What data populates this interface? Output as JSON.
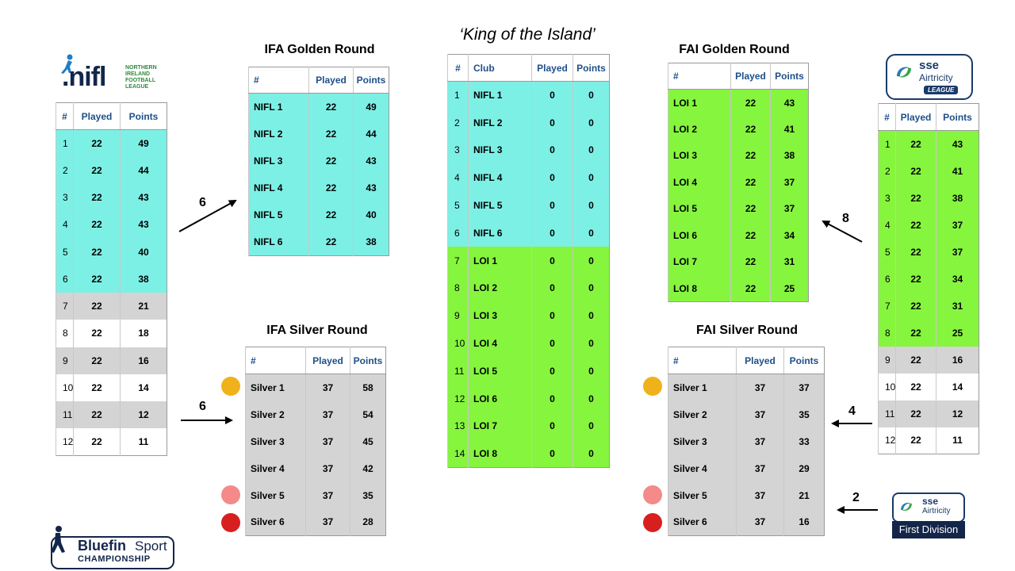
{
  "king": {
    "title": "‘King of the Island’",
    "headers": [
      "#",
      "Club",
      "Played",
      "Points"
    ],
    "rows": [
      {
        "rank": "1",
        "club": "NIFL 1",
        "played": "0",
        "points": "0",
        "color": "cyan"
      },
      {
        "rank": "2",
        "club": "NIFL 2",
        "played": "0",
        "points": "0",
        "color": "cyan"
      },
      {
        "rank": "3",
        "club": "NIFL 3",
        "played": "0",
        "points": "0",
        "color": "cyan"
      },
      {
        "rank": "4",
        "club": "NIFL 4",
        "played": "0",
        "points": "0",
        "color": "cyan"
      },
      {
        "rank": "5",
        "club": "NIFL 5",
        "played": "0",
        "points": "0",
        "color": "cyan"
      },
      {
        "rank": "6",
        "club": "NIFL 6",
        "played": "0",
        "points": "0",
        "color": "cyan"
      },
      {
        "rank": "7",
        "club": "LOI 1",
        "played": "0",
        "points": "0",
        "color": "green"
      },
      {
        "rank": "8",
        "club": "LOI 2",
        "played": "0",
        "points": "0",
        "color": "green"
      },
      {
        "rank": "9",
        "club": "LOI 3",
        "played": "0",
        "points": "0",
        "color": "green"
      },
      {
        "rank": "10",
        "club": "LOI 4",
        "played": "0",
        "points": "0",
        "color": "green"
      },
      {
        "rank": "11",
        "club": "LOI 5",
        "played": "0",
        "points": "0",
        "color": "green"
      },
      {
        "rank": "12",
        "club": "LOI 6",
        "played": "0",
        "points": "0",
        "color": "green"
      },
      {
        "rank": "13",
        "club": "LOI 7",
        "played": "0",
        "points": "0",
        "color": "green"
      },
      {
        "rank": "14",
        "club": "LOI 8",
        "played": "0",
        "points": "0",
        "color": "green"
      }
    ]
  },
  "nifl": {
    "logo_text": ".nifl",
    "logo_sub": [
      "NORTHERN",
      "IRELAND",
      "FOOTBALL",
      "LEAGUE"
    ],
    "headers": [
      "#",
      "Played",
      "Points"
    ],
    "rows": [
      {
        "rank": "1",
        "played": "22",
        "points": "49",
        "color": "cyan"
      },
      {
        "rank": "2",
        "played": "22",
        "points": "44",
        "color": "cyan"
      },
      {
        "rank": "3",
        "played": "22",
        "points": "43",
        "color": "cyan"
      },
      {
        "rank": "4",
        "played": "22",
        "points": "43",
        "color": "cyan"
      },
      {
        "rank": "5",
        "played": "22",
        "points": "40",
        "color": "cyan"
      },
      {
        "rank": "6",
        "played": "22",
        "points": "38",
        "color": "cyan"
      },
      {
        "rank": "7",
        "played": "22",
        "points": "21",
        "color": "grey"
      },
      {
        "rank": "8",
        "played": "22",
        "points": "18",
        "color": "white"
      },
      {
        "rank": "9",
        "played": "22",
        "points": "16",
        "color": "grey"
      },
      {
        "rank": "10",
        "played": "22",
        "points": "14",
        "color": "white"
      },
      {
        "rank": "11",
        "played": "22",
        "points": "12",
        "color": "grey"
      },
      {
        "rank": "12",
        "played": "22",
        "points": "11",
        "color": "white"
      }
    ]
  },
  "loi": {
    "logo_brand": "sse",
    "logo_name": "Airtricity",
    "logo_league": "LEAGUE",
    "headers": [
      "#",
      "Played",
      "Points"
    ],
    "rows": [
      {
        "rank": "1",
        "played": "22",
        "points": "43",
        "color": "green"
      },
      {
        "rank": "2",
        "played": "22",
        "points": "41",
        "color": "green"
      },
      {
        "rank": "3",
        "played": "22",
        "points": "38",
        "color": "green"
      },
      {
        "rank": "4",
        "played": "22",
        "points": "37",
        "color": "green"
      },
      {
        "rank": "5",
        "played": "22",
        "points": "37",
        "color": "green"
      },
      {
        "rank": "6",
        "played": "22",
        "points": "34",
        "color": "green"
      },
      {
        "rank": "7",
        "played": "22",
        "points": "31",
        "color": "green"
      },
      {
        "rank": "8",
        "played": "22",
        "points": "25",
        "color": "green"
      },
      {
        "rank": "9",
        "played": "22",
        "points": "16",
        "color": "grey"
      },
      {
        "rank": "10",
        "played": "22",
        "points": "14",
        "color": "white"
      },
      {
        "rank": "11",
        "played": "22",
        "points": "12",
        "color": "grey"
      },
      {
        "rank": "12",
        "played": "22",
        "points": "11",
        "color": "white"
      }
    ]
  },
  "ifa_golden": {
    "title": "IFA Golden Round",
    "headers": [
      "#",
      "Played",
      "Points"
    ],
    "rows": [
      {
        "club": "NIFL 1",
        "played": "22",
        "points": "49"
      },
      {
        "club": "NIFL 2",
        "played": "22",
        "points": "44"
      },
      {
        "club": "NIFL 3",
        "played": "22",
        "points": "43"
      },
      {
        "club": "NIFL 4",
        "played": "22",
        "points": "43"
      },
      {
        "club": "NIFL 5",
        "played": "22",
        "points": "40"
      },
      {
        "club": "NIFL 6",
        "played": "22",
        "points": "38"
      }
    ]
  },
  "ifa_silver": {
    "title": "IFA Silver Round",
    "headers": [
      "#",
      "Played",
      "Points"
    ],
    "rows": [
      {
        "club": "Silver 1",
        "played": "37",
        "points": "58"
      },
      {
        "club": "Silver 2",
        "played": "37",
        "points": "54"
      },
      {
        "club": "Silver 3",
        "played": "37",
        "points": "45"
      },
      {
        "club": "Silver 4",
        "played": "37",
        "points": "42"
      },
      {
        "club": "Silver 5",
        "played": "37",
        "points": "35"
      },
      {
        "club": "Silver 6",
        "played": "37",
        "points": "28"
      }
    ]
  },
  "fai_golden": {
    "title": "FAI Golden Round",
    "headers": [
      "#",
      "Played",
      "Points"
    ],
    "rows": [
      {
        "club": "LOI 1",
        "played": "22",
        "points": "43"
      },
      {
        "club": "LOI 2",
        "played": "22",
        "points": "41"
      },
      {
        "club": "LOI 3",
        "played": "22",
        "points": "38"
      },
      {
        "club": "LOI 4",
        "played": "22",
        "points": "37"
      },
      {
        "club": "LOI 5",
        "played": "22",
        "points": "37"
      },
      {
        "club": "LOI 6",
        "played": "22",
        "points": "34"
      },
      {
        "club": "LOI 7",
        "played": "22",
        "points": "31"
      },
      {
        "club": "LOI 8",
        "played": "22",
        "points": "25"
      }
    ]
  },
  "fai_silver": {
    "title": "FAI Silver Round",
    "headers": [
      "#",
      "Played",
      "Points"
    ],
    "rows": [
      {
        "club": "Silver 1",
        "played": "37",
        "points": "37"
      },
      {
        "club": "Silver 2",
        "played": "37",
        "points": "35"
      },
      {
        "club": "Silver 3",
        "played": "37",
        "points": "33"
      },
      {
        "club": "Silver 4",
        "played": "37",
        "points": "29"
      },
      {
        "club": "Silver 5",
        "played": "37",
        "points": "21"
      },
      {
        "club": "Silver 6",
        "played": "37",
        "points": "16"
      }
    ]
  },
  "arrows": {
    "nifl_to_golden": "6",
    "nifl_to_silver": "6",
    "loi_to_golden": "8",
    "loi_to_silver": "4",
    "first_div_to_silver": "2"
  },
  "first_division": {
    "brand": "sse",
    "name": "Airtricity",
    "label": "First Division"
  },
  "bluefin": {
    "brand": "Bluefin",
    "brand_suffix": "Sport",
    "sub": "CHAMPIONSHIP"
  },
  "colors": {
    "cyan": "#7df0e6",
    "green": "#86f53e",
    "grey": "#d4d4d4",
    "gold_dot": "#f0b21a",
    "pink_dot": "#f48a8a",
    "red_dot": "#d81f1f",
    "header_blue": "#1e4f8a",
    "navy": "#13264a"
  }
}
